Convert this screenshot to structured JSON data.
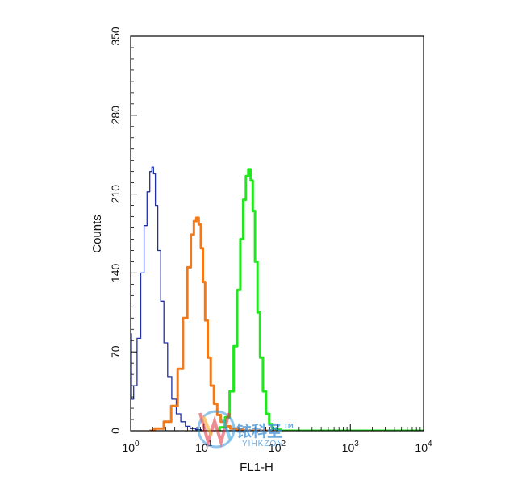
{
  "chart_data": {
    "type": "line",
    "xlabel": "FL1-H",
    "ylabel": "Counts",
    "xscale": "log",
    "xlim": [
      1,
      10000
    ],
    "ylim": [
      0,
      350
    ],
    "yticks": [
      0,
      70,
      140,
      210,
      280,
      350
    ],
    "xticks": [
      {
        "value": 1,
        "base": "10",
        "exp": "0"
      },
      {
        "value": 10,
        "base": "10",
        "exp": "1"
      },
      {
        "value": 100,
        "base": "10",
        "exp": "2"
      },
      {
        "value": 1000,
        "base": "10",
        "exp": "3"
      },
      {
        "value": 10000,
        "base": "10",
        "exp": "4"
      }
    ],
    "grid": false,
    "series": [
      {
        "color": "#1f2fa6",
        "stroke": "thin",
        "x": [
          1,
          1.05,
          1.15,
          1.3,
          1.45,
          1.6,
          1.75,
          1.9,
          2.0,
          2.1,
          2.25,
          2.45,
          2.7,
          3.0,
          3.4,
          3.9,
          4.5,
          5.2,
          6.0,
          7.0,
          8.5,
          10,
          13,
          20,
          40,
          100
        ],
        "y": [
          86,
          28,
          40,
          82,
          140,
          182,
          212,
          230,
          234,
          228,
          200,
          160,
          115,
          78,
          48,
          28,
          15,
          8,
          4,
          2,
          1,
          0,
          0,
          0,
          0,
          0
        ]
      },
      {
        "color": "#f07a1c",
        "stroke": "thick",
        "x": [
          1.8,
          2.5,
          3.2,
          4.0,
          4.8,
          5.6,
          6.3,
          7.0,
          7.6,
          8.2,
          8.8,
          9.4,
          10.0,
          10.8,
          11.8,
          13.0,
          14.5,
          16.0,
          18.0,
          21.0,
          25.0,
          30.0,
          40.0,
          60.0,
          100.0
        ],
        "y": [
          0,
          2,
          8,
          22,
          55,
          100,
          145,
          174,
          186,
          189,
          183,
          162,
          132,
          98,
          65,
          40,
          24,
          14,
          8,
          4,
          2,
          1,
          0,
          0,
          0
        ]
      },
      {
        "color": "#22e61e",
        "stroke": "thick",
        "x": [
          15,
          18,
          21,
          24,
          27,
          30,
          33,
          36,
          39,
          42,
          45,
          48,
          52,
          56,
          61,
          67,
          74,
          82,
          92,
          105,
          120,
          200,
          10000
        ],
        "y": [
          0,
          3,
          12,
          35,
          75,
          125,
          170,
          205,
          226,
          232,
          222,
          195,
          150,
          105,
          65,
          35,
          15,
          6,
          2,
          1,
          0,
          0,
          0
        ]
      }
    ]
  },
  "watermark": {
    "cn_text": "铱科圣",
    "en_text": "YIHKZON",
    "tm": "TM"
  }
}
